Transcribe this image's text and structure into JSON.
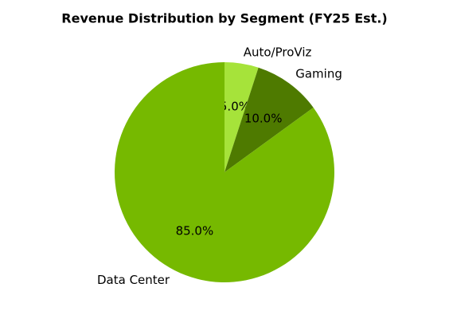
{
  "chart_data": {
    "type": "pie",
    "title": "Revenue Distribution by Segment (FY25 Est.)",
    "categories": [
      "Auto/ProViz",
      "Gaming",
      "Data Center"
    ],
    "values": [
      5,
      10,
      85
    ],
    "value_labels": [
      "5.0%",
      "10.0%",
      "85.0%"
    ],
    "colors": [
      "#a6e33a",
      "#4e7a00",
      "#76b900"
    ]
  }
}
